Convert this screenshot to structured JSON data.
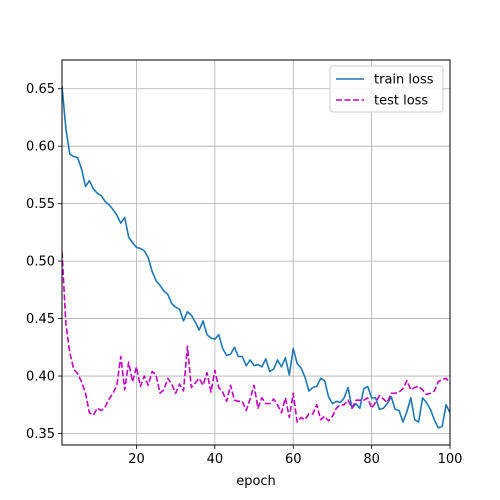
{
  "chart_data": {
    "type": "line",
    "title": "",
    "xlabel": "epoch",
    "ylabel": "",
    "xlim": [
      1,
      100
    ],
    "ylim": [
      0.34,
      0.675
    ],
    "xticks": [
      20,
      40,
      60,
      80,
      100
    ],
    "yticks": [
      0.35,
      0.4,
      0.45,
      0.5,
      0.55,
      0.6,
      0.65
    ],
    "ytick_labels": [
      "0.35",
      "0.40",
      "0.45",
      "0.50",
      "0.55",
      "0.60",
      "0.65"
    ],
    "grid": true,
    "legend_position": "upper-right",
    "series": [
      {
        "name": "train loss",
        "color": "#1f77b4",
        "dash": "solid",
        "x": [
          1,
          2,
          3,
          4,
          5,
          6,
          7,
          8,
          9,
          10,
          11,
          12,
          13,
          14,
          15,
          16,
          17,
          18,
          19,
          20,
          21,
          22,
          23,
          24,
          25,
          26,
          27,
          28,
          29,
          30,
          31,
          32,
          33,
          34,
          35,
          36,
          37,
          38,
          39,
          40,
          41,
          42,
          43,
          44,
          45,
          46,
          47,
          48,
          49,
          50,
          51,
          52,
          53,
          54,
          55,
          56,
          57,
          58,
          59,
          60,
          61,
          62,
          63,
          64,
          65,
          66,
          67,
          68,
          69,
          70,
          71,
          72,
          73,
          74,
          75,
          76,
          77,
          78,
          79,
          80,
          81,
          82,
          83,
          84,
          85,
          86,
          87,
          88,
          89,
          90,
          91,
          92,
          93,
          94,
          95,
          96,
          97,
          98,
          99,
          100
        ],
        "y": [
          0.652,
          0.615,
          0.593,
          0.591,
          0.59,
          0.58,
          0.565,
          0.57,
          0.563,
          0.559,
          0.557,
          0.552,
          0.549,
          0.545,
          0.54,
          0.533,
          0.538,
          0.521,
          0.516,
          0.512,
          0.511,
          0.509,
          0.503,
          0.491,
          0.483,
          0.479,
          0.474,
          0.471,
          0.463,
          0.46,
          0.458,
          0.448,
          0.456,
          0.453,
          0.447,
          0.44,
          0.448,
          0.436,
          0.433,
          0.432,
          0.436,
          0.424,
          0.418,
          0.419,
          0.425,
          0.417,
          0.417,
          0.409,
          0.414,
          0.409,
          0.41,
          0.408,
          0.415,
          0.404,
          0.406,
          0.414,
          0.408,
          0.416,
          0.401,
          0.424,
          0.411,
          0.407,
          0.399,
          0.387,
          0.39,
          0.391,
          0.398,
          0.396,
          0.382,
          0.376,
          0.378,
          0.377,
          0.381,
          0.39,
          0.372,
          0.376,
          0.372,
          0.389,
          0.391,
          0.381,
          0.381,
          0.371,
          0.372,
          0.376,
          0.382,
          0.371,
          0.37,
          0.36,
          0.369,
          0.381,
          0.362,
          0.36,
          0.381,
          0.377,
          0.371,
          0.362,
          0.355,
          0.356,
          0.375,
          0.368
        ]
      },
      {
        "name": "test loss",
        "color": "#bf00bf",
        "dash": "dashed",
        "x": [
          1,
          2,
          3,
          4,
          5,
          6,
          7,
          8,
          9,
          10,
          11,
          12,
          13,
          14,
          15,
          16,
          17,
          18,
          19,
          20,
          21,
          22,
          23,
          24,
          25,
          26,
          27,
          28,
          29,
          30,
          31,
          32,
          33,
          34,
          35,
          36,
          37,
          38,
          39,
          40,
          41,
          42,
          43,
          44,
          45,
          46,
          47,
          48,
          49,
          50,
          51,
          52,
          53,
          54,
          55,
          56,
          57,
          58,
          59,
          60,
          61,
          62,
          63,
          64,
          65,
          66,
          67,
          68,
          69,
          70,
          71,
          72,
          73,
          74,
          75,
          76,
          77,
          78,
          79,
          80,
          81,
          82,
          83,
          84,
          85,
          86,
          87,
          88,
          89,
          90,
          91,
          92,
          93,
          94,
          95,
          96,
          97,
          98,
          99,
          100
        ],
        "y": [
          0.508,
          0.445,
          0.42,
          0.406,
          0.402,
          0.395,
          0.385,
          0.368,
          0.366,
          0.372,
          0.37,
          0.373,
          0.38,
          0.385,
          0.392,
          0.417,
          0.388,
          0.412,
          0.395,
          0.408,
          0.391,
          0.4,
          0.392,
          0.404,
          0.401,
          0.385,
          0.388,
          0.398,
          0.393,
          0.385,
          0.393,
          0.387,
          0.426,
          0.39,
          0.394,
          0.398,
          0.392,
          0.403,
          0.386,
          0.405,
          0.39,
          0.386,
          0.378,
          0.392,
          0.379,
          0.378,
          0.378,
          0.37,
          0.38,
          0.392,
          0.372,
          0.381,
          0.376,
          0.376,
          0.38,
          0.375,
          0.368,
          0.381,
          0.364,
          0.385,
          0.36,
          0.364,
          0.362,
          0.367,
          0.367,
          0.375,
          0.362,
          0.365,
          0.361,
          0.365,
          0.372,
          0.375,
          0.375,
          0.379,
          0.372,
          0.379,
          0.379,
          0.379,
          0.381,
          0.372,
          0.377,
          0.383,
          0.38,
          0.377,
          0.385,
          0.385,
          0.386,
          0.389,
          0.396,
          0.388,
          0.39,
          0.391,
          0.388,
          0.384,
          0.385,
          0.387,
          0.395,
          0.397,
          0.398,
          0.394
        ]
      }
    ]
  }
}
